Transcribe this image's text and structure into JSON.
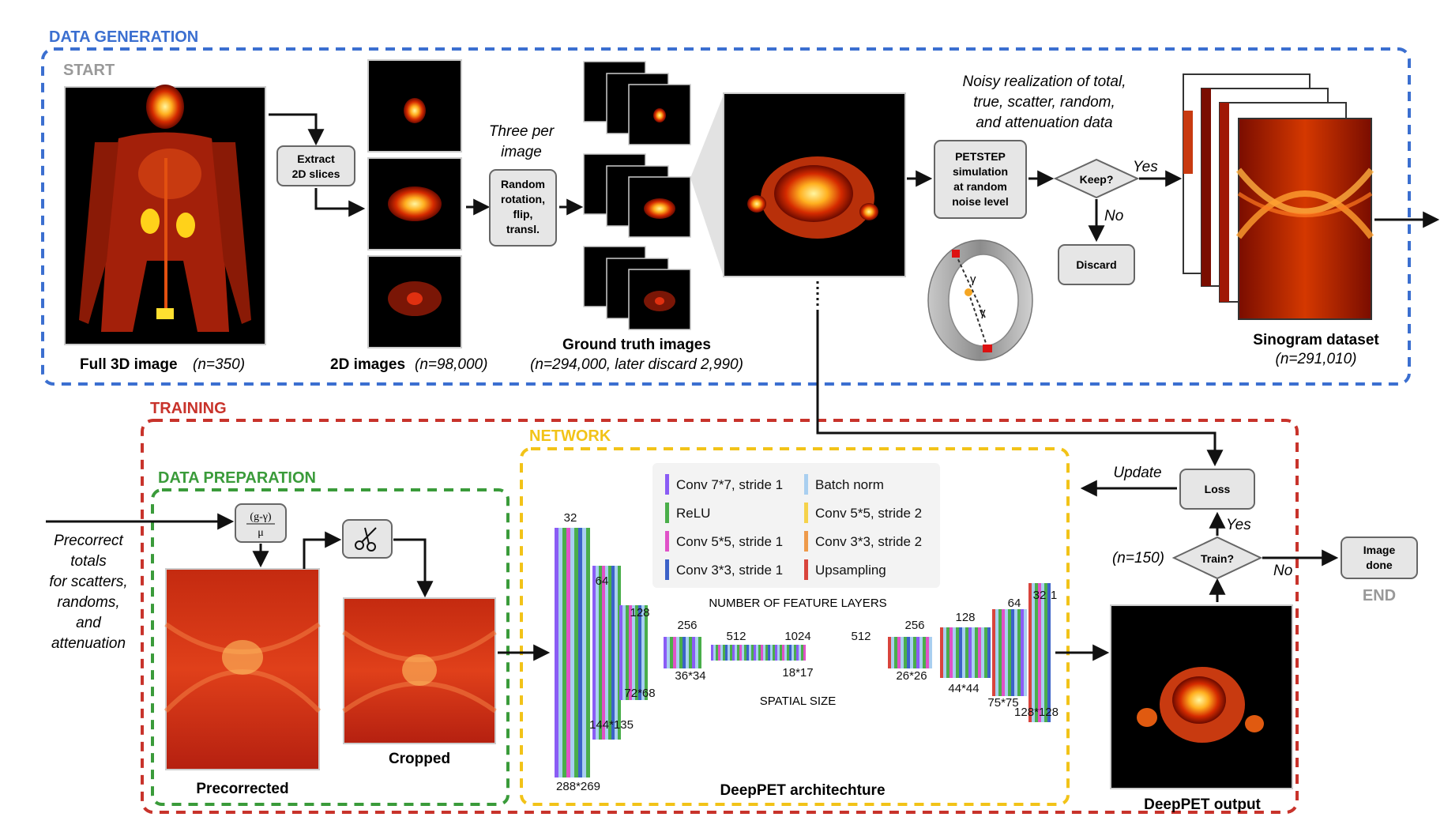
{
  "sections": {
    "data_generation": "DATA GENERATION",
    "training": "TRAINING",
    "data_preparation": "DATA PREPARATION",
    "network": "NETWORK",
    "start": "START",
    "end": "END"
  },
  "colors": {
    "data_generation": "#3b6fd0",
    "training": "#c8332b",
    "data_preparation": "#3a9b3a",
    "network": "#f2c318",
    "start_end": "#999999"
  },
  "generation": {
    "full_image_label": "Full 3D image",
    "full_image_count": "(n=350)",
    "extract_box": [
      "Extract",
      "2D slices"
    ],
    "images_2d_label": "2D images",
    "images_2d_count": "(n=98,000)",
    "three_per_image": [
      "Three per",
      "image"
    ],
    "augment_box": [
      "Random",
      "rotation,",
      "flip,",
      "transl."
    ],
    "ground_truth_label": "Ground truth images",
    "ground_truth_count": "(n=294,000, later discard 2,990)",
    "noisy_caption": [
      "Noisy realization of total,",
      "true, scatter, random,",
      "and attenuation data"
    ],
    "petstep_box": [
      "PETSTEP",
      "simulation",
      "at random",
      "noise level"
    ],
    "keep_label": "Keep?",
    "yes_label": "Yes",
    "no_label": "No",
    "discard_box": "Discard",
    "gamma": "γ",
    "sinogram_label": "Sinogram dataset",
    "sinogram_count": "(n=291,010)"
  },
  "preparation": {
    "precorrect_text": [
      "Precorrect",
      "totals",
      "for scatters,",
      "randoms,",
      "and",
      "attenuation"
    ],
    "formula_top": "(g-γ)",
    "formula_bottom": "μ",
    "precorrected_label": "Precorrected",
    "cropped_label": "Cropped"
  },
  "network": {
    "legend": [
      {
        "label": "Conv 7*7, stride 1",
        "color": "#8a5cf5"
      },
      {
        "label": "Batch norm",
        "color": "#a9cff0"
      },
      {
        "label": "ReLU",
        "color": "#4aae4a"
      },
      {
        "label": "Conv 5*5, stride 2",
        "color": "#f5d24a"
      },
      {
        "label": "Conv 5*5, stride 1",
        "color": "#e052c8"
      },
      {
        "label": "Conv 3*3, stride 2",
        "color": "#ee9a4a"
      },
      {
        "label": "Conv 3*3, stride 1",
        "color": "#3c62c8"
      },
      {
        "label": "Upsampling",
        "color": "#d9443c"
      }
    ],
    "feature_caption": "NUMBER OF FEATURE LAYERS",
    "spatial_caption": "SPATIAL SIZE",
    "feature_counts": [
      "32",
      "64",
      "128",
      "256",
      "512",
      "1024",
      "512",
      "256",
      "128",
      "64",
      "32",
      "1"
    ],
    "spatial_sizes": [
      "288*269",
      "144*135",
      "72*68",
      "36*34",
      "18*17",
      "26*26",
      "44*44",
      "75*75",
      "128*128"
    ],
    "architecture_label": "DeepPET architechture"
  },
  "training": {
    "update_label": "Update",
    "loss_box": "Loss",
    "train_label": "Train?",
    "yes_label": "Yes",
    "no_label": "No",
    "n_label": "(n=150)",
    "image_done_box": [
      "Image",
      "done"
    ],
    "output_label": "DeepPET output"
  }
}
